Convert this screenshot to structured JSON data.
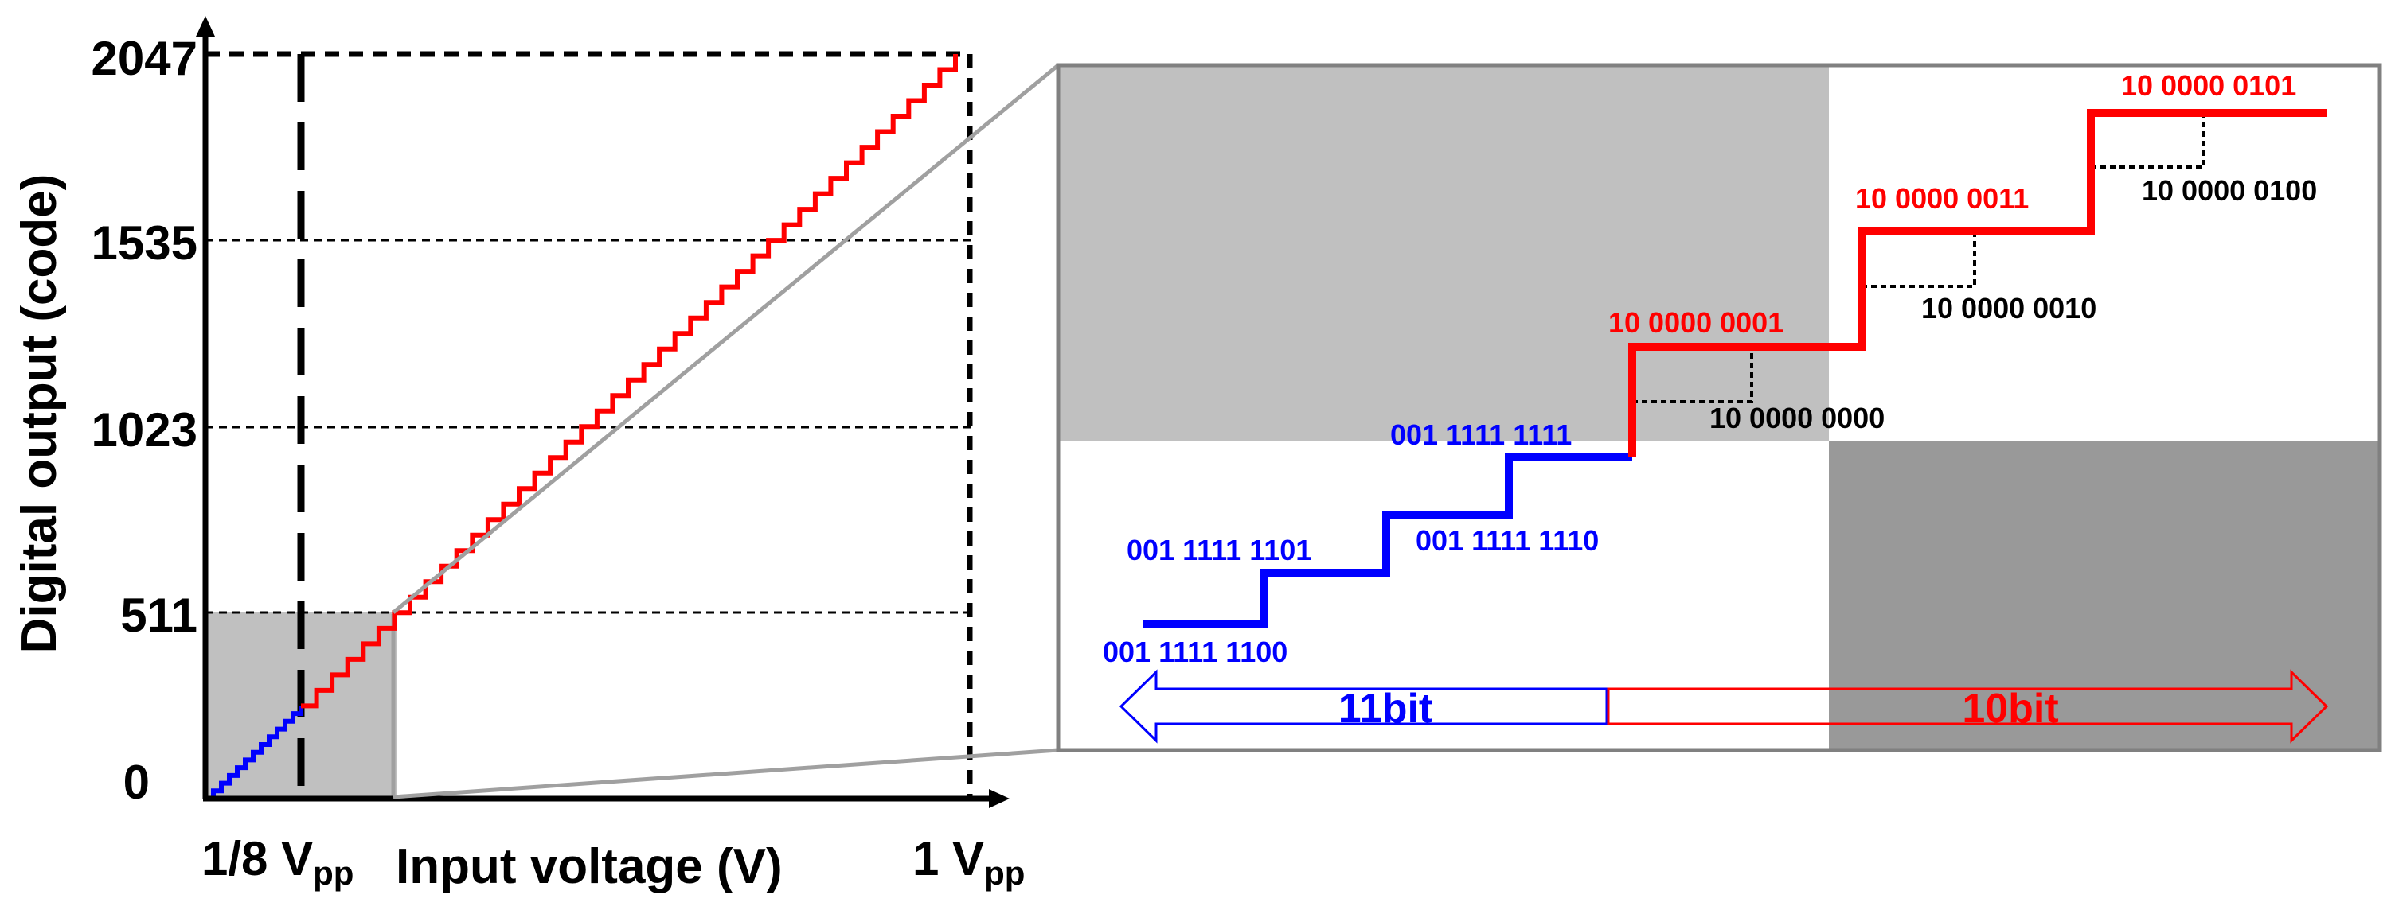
{
  "colors": {
    "msb_path": "#ff0000",
    "lsb_path": "#0000ff",
    "shade_light": "#c0c0c0",
    "shade_dark": "#999999",
    "connector": "#a0a0a0",
    "axis": "#000000"
  },
  "left_plot": {
    "ylabel": "Digital output (code)",
    "y_ticks": [
      "2047",
      "1535",
      "1023",
      "511",
      "0"
    ],
    "x_tick_left_main": "1/8 V",
    "x_tick_left_sub": "pp",
    "xlabel": "Input voltage (V)",
    "x_tick_right_main": "1 V",
    "x_tick_right_sub": "pp",
    "transfer": {
      "lsb_segment": {
        "code_start": 0,
        "code_end": 255,
        "steps": 12
      },
      "msb_segment": {
        "code_start": 255,
        "code_end": 2047,
        "steps": 42
      }
    }
  },
  "zoom_panel": {
    "blue_codes": [
      "001 1111 1100",
      "001 1111 1101",
      "001 1111 1110",
      "001 1111 1111"
    ],
    "red_upper_codes": [
      "10 0000 0001",
      "10 0000 0011",
      "10 0000 0101"
    ],
    "red_lower_codes": [
      "10 0000 0000",
      "10 0000 0010",
      "10 0000 0100"
    ],
    "arrow_left_label": "11bit",
    "arrow_right_label": "10bit"
  }
}
